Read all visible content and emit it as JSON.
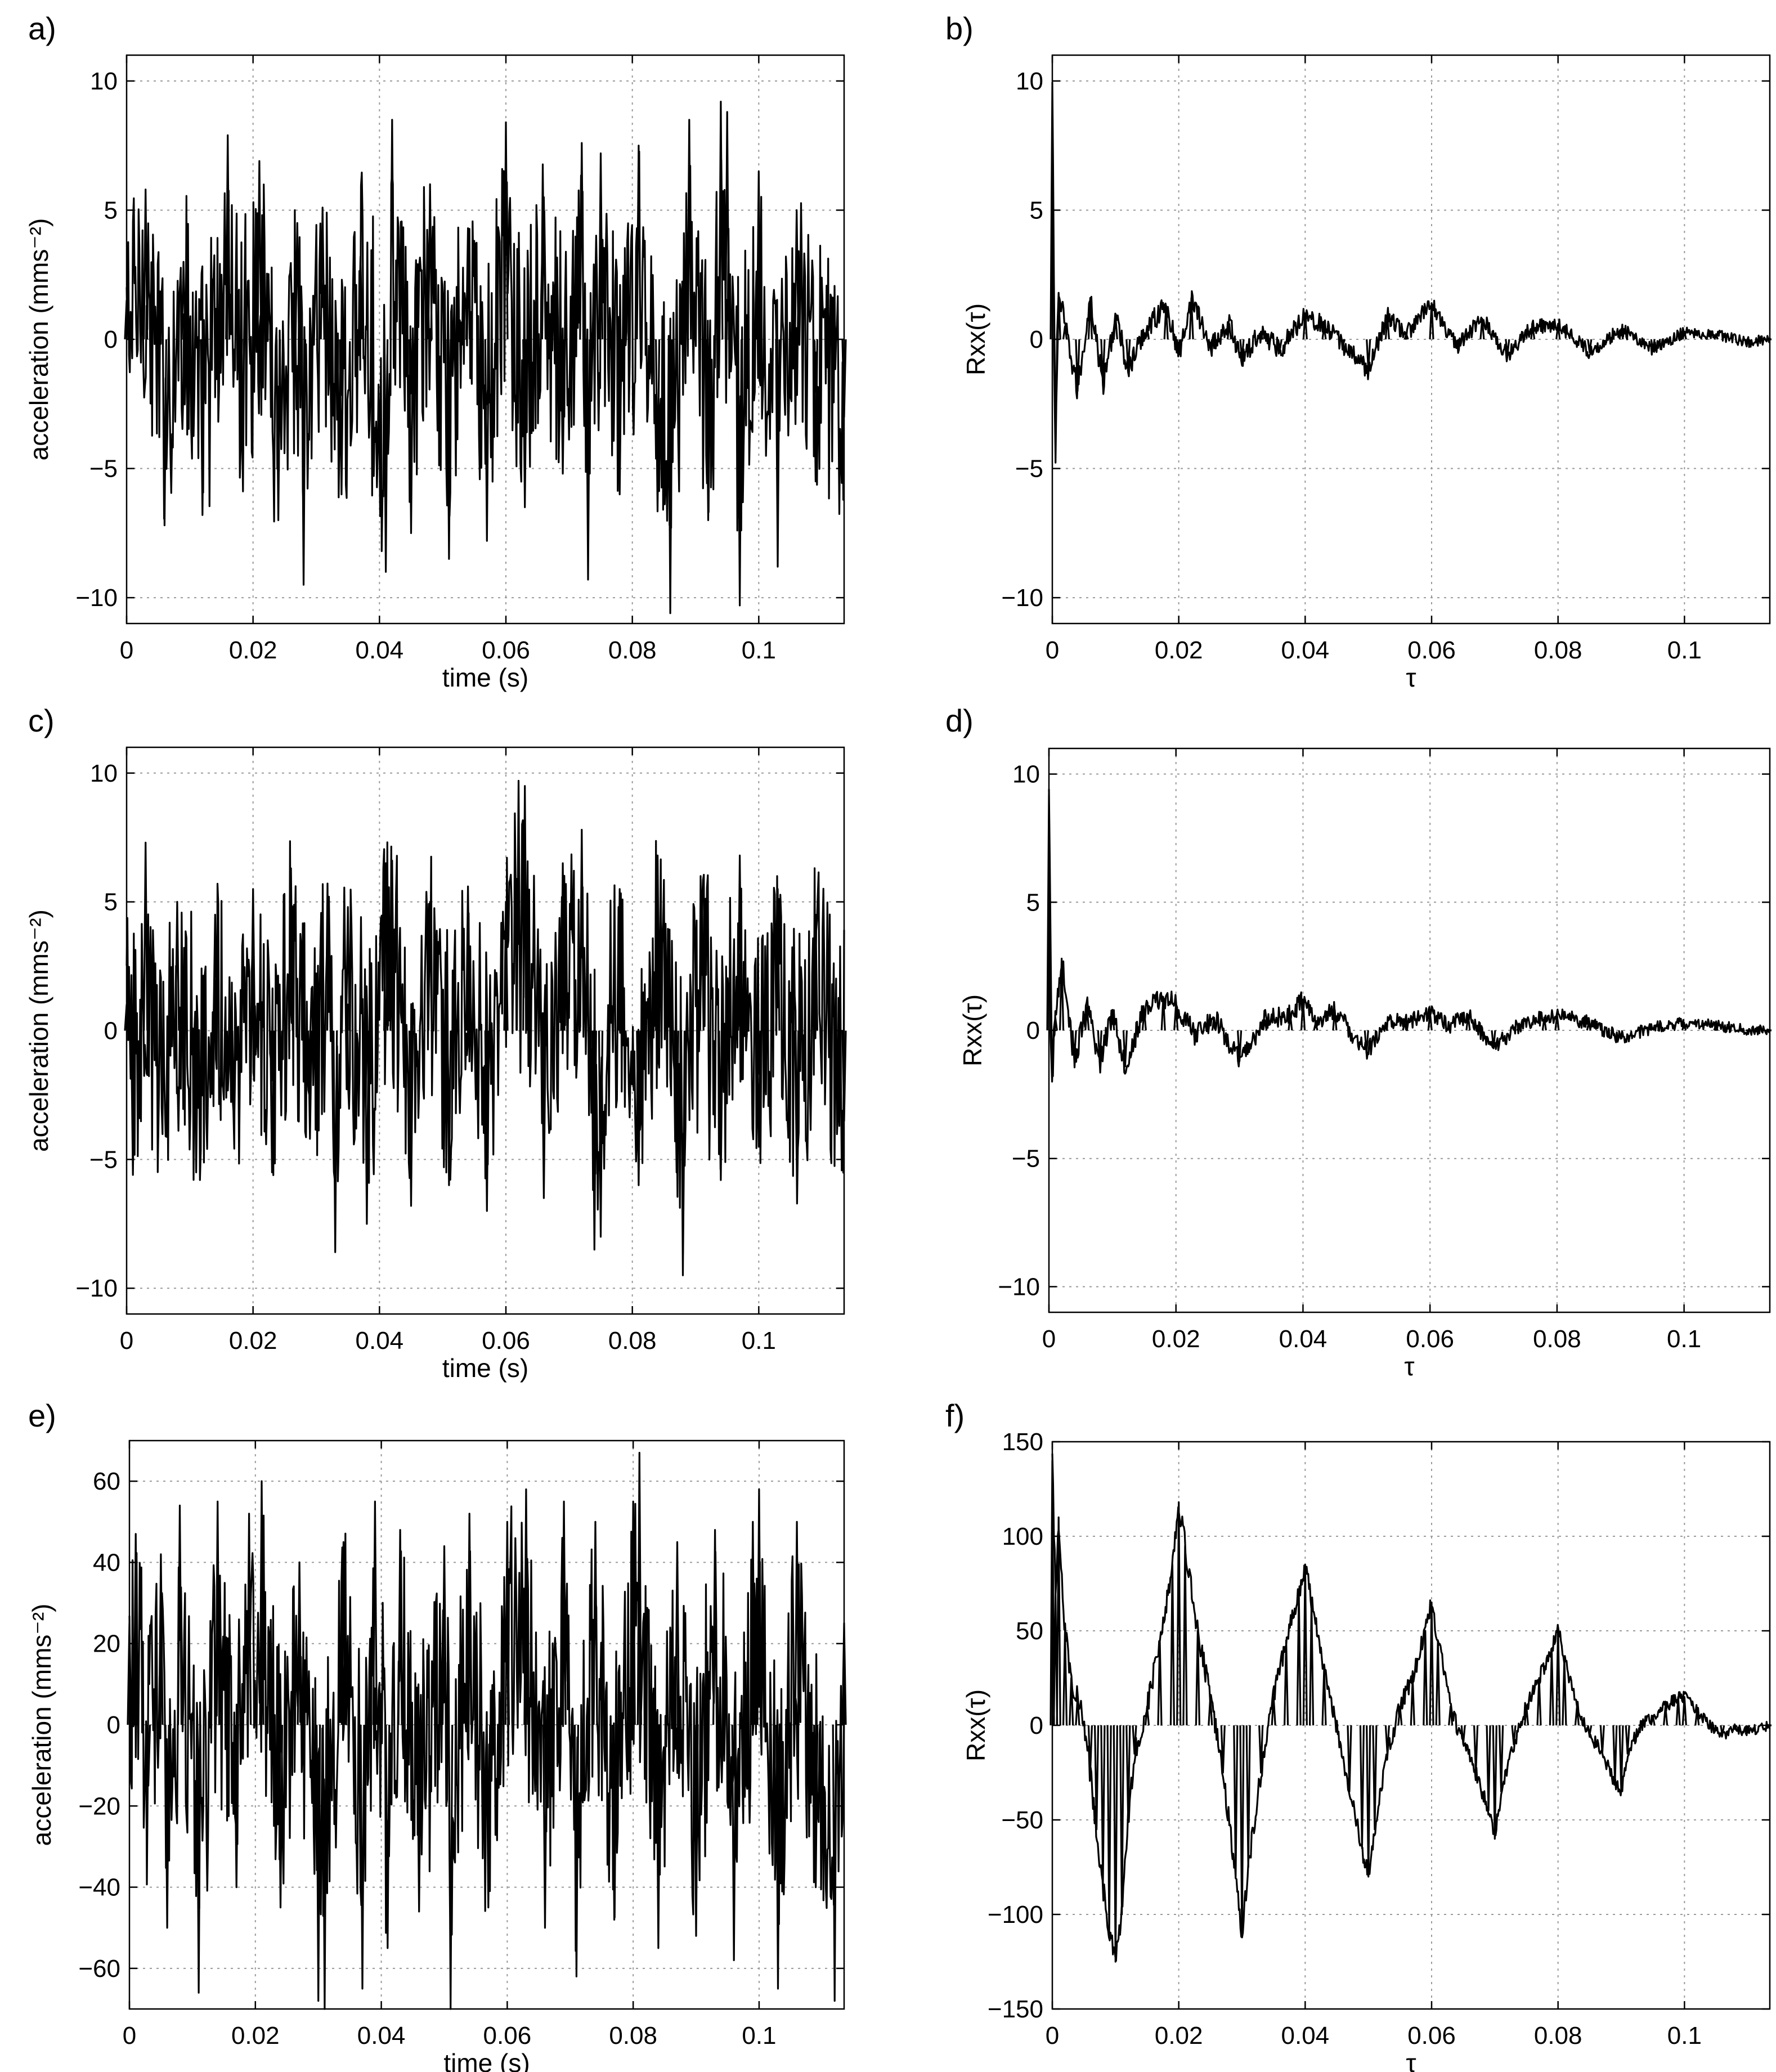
{
  "chart_data": [
    {
      "panel": "a)",
      "type": "line",
      "xlabel": "time (s)",
      "ylabel": "acceleration (mms⁻²)",
      "xlim": [
        0,
        0.1135
      ],
      "ylim": [
        -11,
        11
      ],
      "xticks": [
        0,
        0.02,
        0.04,
        0.06,
        0.08,
        0.1
      ],
      "xtick_labels": [
        "0",
        "0.02",
        "0.04",
        "0.06",
        "0.08",
        "0.1"
      ],
      "yticks": [
        -10,
        -5,
        0,
        5,
        10
      ],
      "ytick_labels": [
        "−10",
        "−5",
        "0",
        "5",
        "10"
      ],
      "grid": true,
      "series": [
        {
          "x": [
            0,
            0.003,
            0.006,
            0.009,
            0.012,
            0.015,
            0.016,
            0.018,
            0.021,
            0.024,
            0.027,
            0.028,
            0.031,
            0.034,
            0.037,
            0.041,
            0.042,
            0.045,
            0.048,
            0.051,
            0.054,
            0.057,
            0.06,
            0.063,
            0.066,
            0.069,
            0.072,
            0.073,
            0.075,
            0.078,
            0.081,
            0.084,
            0.086,
            0.089,
            0.092,
            0.094,
            0.095,
            0.097,
            0.1,
            0.103,
            0.106,
            0.109,
            0.1135
          ],
          "y": [
            1.5,
            5.8,
            -7.2,
            3.0,
            -6.8,
            2.5,
            7.9,
            -3.5,
            6.9,
            -7.0,
            4.5,
            -9.5,
            5.1,
            -6.0,
            3.2,
            -9.0,
            8.5,
            -7.5,
            6.0,
            -8.5,
            4.3,
            -7.8,
            8.4,
            -6.5,
            5.5,
            -5.2,
            7.6,
            -9.3,
            7.2,
            -6.0,
            7.5,
            -5.5,
            -10.6,
            8.5,
            -7.0,
            9.2,
            8.8,
            -10.3,
            6.5,
            -8.8,
            5.0,
            -5.5,
            -3.0
          ]
        }
      ]
    },
    {
      "panel": "b)",
      "type": "line",
      "xlabel": "τ",
      "ylabel": "Rxx(τ)",
      "xlim": [
        0,
        0.1135
      ],
      "ylim": [
        -11,
        11
      ],
      "xticks": [
        0,
        0.02,
        0.04,
        0.06,
        0.08,
        0.1
      ],
      "xtick_labels": [
        "0",
        "0.02",
        "0.04",
        "0.06",
        "0.08",
        "0.1"
      ],
      "yticks": [
        -10,
        -5,
        0,
        5,
        10
      ],
      "ytick_labels": [
        "−10",
        "−5",
        "0",
        "5",
        "10"
      ],
      "grid": true,
      "series": [
        {
          "x": [
            0,
            0.0005,
            0.001,
            0.002,
            0.004,
            0.006,
            0.008,
            0.01,
            0.012,
            0.015,
            0.018,
            0.02,
            0.022,
            0.025,
            0.028,
            0.03,
            0.033,
            0.036,
            0.04,
            0.043,
            0.046,
            0.05,
            0.053,
            0.056,
            0.06,
            0.064,
            0.068,
            0.072,
            0.076,
            0.08,
            0.085,
            0.09,
            0.095,
            0.1,
            0.105,
            0.11,
            0.1135
          ],
          "y": [
            9.8,
            -4.5,
            1.8,
            0.5,
            -2.0,
            1.6,
            -1.8,
            0.9,
            -1.2,
            0.5,
            1.3,
            -0.6,
            1.6,
            -0.3,
            0.6,
            -0.8,
            0.3,
            -0.4,
            1.0,
            0.5,
            -0.2,
            -1.2,
            0.9,
            0.2,
            1.4,
            -0.3,
            0.8,
            -0.6,
            0.5,
            0.6,
            -0.5,
            0.4,
            -0.4,
            0.3,
            0.2,
            -0.1,
            0.0
          ]
        }
      ]
    },
    {
      "panel": "c)",
      "type": "line",
      "xlabel": "time (s)",
      "ylabel": "acceleration (mms⁻²)",
      "xlim": [
        0,
        0.1135
      ],
      "ylim": [
        -11,
        11
      ],
      "xticks": [
        0,
        0.02,
        0.04,
        0.06,
        0.08,
        0.1
      ],
      "xtick_labels": [
        "0",
        "0.02",
        "0.04",
        "0.06",
        "0.08",
        "0.1"
      ],
      "yticks": [
        -10,
        -5,
        0,
        5,
        10
      ],
      "ytick_labels": [
        "−10",
        "−5",
        "0",
        "5",
        "10"
      ],
      "grid": true,
      "series": [
        {
          "x": [
            0,
            0.001,
            0.003,
            0.005,
            0.008,
            0.011,
            0.014,
            0.017,
            0.02,
            0.023,
            0.026,
            0.029,
            0.032,
            0.033,
            0.035,
            0.038,
            0.041,
            0.042,
            0.045,
            0.048,
            0.051,
            0.054,
            0.057,
            0.06,
            0.062,
            0.063,
            0.066,
            0.069,
            0.072,
            0.074,
            0.075,
            0.078,
            0.081,
            0.084,
            0.087,
            0.088,
            0.091,
            0.094,
            0.097,
            0.1,
            0.103,
            0.106,
            0.109,
            0.1135
          ],
          "y": [
            1.0,
            -5.6,
            7.3,
            -4.2,
            5.0,
            -5.5,
            4.5,
            -4.0,
            5.5,
            -5.5,
            6.3,
            -4.2,
            5.2,
            -8.6,
            4.8,
            -7.5,
            6.5,
            6.6,
            -6.8,
            5.0,
            -6.0,
            5.6,
            -7.0,
            5.0,
            9.7,
            9.5,
            -6.5,
            6.5,
            7.8,
            -8.5,
            -8.0,
            5.5,
            -6.0,
            6.8,
            -5.5,
            -9.5,
            5.2,
            -5.8,
            6.8,
            -4.5,
            5.5,
            -5.0,
            4.5,
            -3.5
          ]
        }
      ]
    },
    {
      "panel": "d)",
      "type": "line",
      "xlabel": "τ",
      "ylabel": "Rxx(τ)",
      "xlim": [
        0,
        0.1135
      ],
      "ylim": [
        -11,
        11
      ],
      "xticks": [
        0,
        0.02,
        0.04,
        0.06,
        0.08,
        0.1
      ],
      "xtick_labels": [
        "0",
        "0.02",
        "0.04",
        "0.06",
        "0.08",
        "0.1"
      ],
      "yticks": [
        -10,
        -5,
        0,
        5,
        10
      ],
      "ytick_labels": [
        "−10",
        "−5",
        "0",
        "5",
        "10"
      ],
      "grid": true,
      "series": [
        {
          "x": [
            0,
            0.0005,
            0.001,
            0.002,
            0.004,
            0.006,
            0.008,
            0.01,
            0.012,
            0.015,
            0.018,
            0.02,
            0.023,
            0.026,
            0.03,
            0.034,
            0.038,
            0.04,
            0.042,
            0.045,
            0.05,
            0.053,
            0.056,
            0.06,
            0.063,
            0.066,
            0.07,
            0.074,
            0.078,
            0.08,
            0.085,
            0.09,
            0.095,
            0.1,
            0.105,
            0.11,
            0.1135
          ],
          "y": [
            9.2,
            -2.0,
            0.5,
            2.8,
            -1.2,
            0.9,
            -1.3,
            0.8,
            -1.4,
            0.8,
            1.3,
            1.0,
            -0.2,
            0.5,
            -1.2,
            0.4,
            0.6,
            1.2,
            0.3,
            0.8,
            -0.9,
            0.3,
            0.3,
            0.7,
            0.2,
            0.6,
            -0.7,
            0.2,
            0.5,
            0.6,
            0.3,
            -0.3,
            0.1,
            0.3,
            0.2,
            0.0,
            0.0
          ]
        }
      ]
    },
    {
      "panel": "e)",
      "type": "line",
      "xlabel": "time (s)",
      "ylabel": "acceleration (mms⁻²)",
      "xlim": [
        0,
        0.1135
      ],
      "ylim": [
        -70,
        70
      ],
      "xticks": [
        0,
        0.02,
        0.04,
        0.06,
        0.08,
        0.1
      ],
      "xtick_labels": [
        "0",
        "0.02",
        "0.04",
        "0.06",
        "0.08",
        "0.1"
      ],
      "yticks": [
        -60,
        -40,
        -20,
        0,
        20,
        40,
        60
      ],
      "ytick_labels": [
        "−60",
        "−40",
        "−20",
        "0",
        "20",
        "40",
        "60"
      ],
      "grid": true,
      "series": [
        {
          "x": [
            0,
            0.001,
            0.003,
            0.005,
            0.006,
            0.008,
            0.011,
            0.014,
            0.017,
            0.019,
            0.021,
            0.024,
            0.027,
            0.03,
            0.031,
            0.034,
            0.037,
            0.039,
            0.041,
            0.043,
            0.046,
            0.05,
            0.051,
            0.054,
            0.057,
            0.06,
            0.063,
            0.066,
            0.069,
            0.071,
            0.074,
            0.077,
            0.08,
            0.081,
            0.084,
            0.087,
            0.09,
            0.093,
            0.096,
            0.099,
            0.1,
            0.103,
            0.106,
            0.109,
            0.112,
            0.1135
          ],
          "y": [
            25,
            47,
            -15,
            42,
            -50,
            54,
            -66,
            55,
            -40,
            52,
            60,
            -45,
            40,
            -68,
            -70,
            45,
            -65,
            55,
            -55,
            48,
            -46,
            44,
            -70,
            52,
            -45,
            50,
            58,
            -50,
            55,
            -62,
            50,
            -48,
            55,
            67,
            -55,
            45,
            -52,
            48,
            -58,
            50,
            58,
            -65,
            50,
            -40,
            -68,
            25
          ]
        }
      ]
    },
    {
      "panel": "f)",
      "type": "line",
      "xlabel": "τ",
      "ylabel": "Rxx(τ)",
      "xlim": [
        0,
        0.1135
      ],
      "ylim": [
        -150,
        150
      ],
      "xticks": [
        0,
        0.02,
        0.04,
        0.06,
        0.08,
        0.1
      ],
      "xtick_labels": [
        "0",
        "0.02",
        "0.04",
        "0.06",
        "0.08",
        "0.1"
      ],
      "yticks": [
        -150,
        -100,
        -50,
        0,
        50,
        100,
        150
      ],
      "ytick_labels": [
        "−150",
        "−100",
        "−50",
        "0",
        "50",
        "100",
        "150"
      ],
      "grid": true,
      "series": [
        {
          "x": [
            0,
            0.0005,
            0.001,
            0.002,
            0.003,
            0.004,
            0.005,
            0.006,
            0.007,
            0.008,
            0.009,
            0.01,
            0.011,
            0.012,
            0.013,
            0.015,
            0.017,
            0.019,
            0.02,
            0.021,
            0.023,
            0.025,
            0.027,
            0.029,
            0.03,
            0.031,
            0.033,
            0.035,
            0.037,
            0.039,
            0.04,
            0.041,
            0.043,
            0.045,
            0.047,
            0.049,
            0.05,
            0.051,
            0.053,
            0.055,
            0.057,
            0.059,
            0.06,
            0.061,
            0.063,
            0.065,
            0.067,
            0.069,
            0.07,
            0.071,
            0.073,
            0.075,
            0.077,
            0.079,
            0.08,
            0.081,
            0.083,
            0.085,
            0.087,
            0.089,
            0.09,
            0.091,
            0.093,
            0.095,
            0.097,
            0.099,
            0.1,
            0.102,
            0.104,
            0.106,
            0.108,
            0.11,
            0.1135
          ],
          "y": [
            140,
            70,
            110,
            50,
            25,
            15,
            0,
            -25,
            -55,
            -85,
            -110,
            -125,
            -100,
            -50,
            -15,
            10,
            45,
            85,
            118,
            95,
            50,
            15,
            -25,
            -80,
            -110,
            -75,
            -25,
            15,
            45,
            70,
            85,
            65,
            30,
            0,
            -35,
            -65,
            -80,
            -55,
            -15,
            10,
            25,
            50,
            65,
            45,
            10,
            -10,
            -25,
            -45,
            -60,
            -35,
            -10,
            10,
            25,
            40,
            52,
            35,
            10,
            -5,
            -15,
            -30,
            -35,
            -15,
            0,
            5,
            10,
            15,
            15,
            8,
            0,
            -5,
            -2,
            -3,
            0
          ]
        }
      ]
    }
  ],
  "colors": {
    "line": "#000000",
    "grid": "#9a9a9a",
    "axes": "#000000",
    "background": "#ffffff"
  }
}
